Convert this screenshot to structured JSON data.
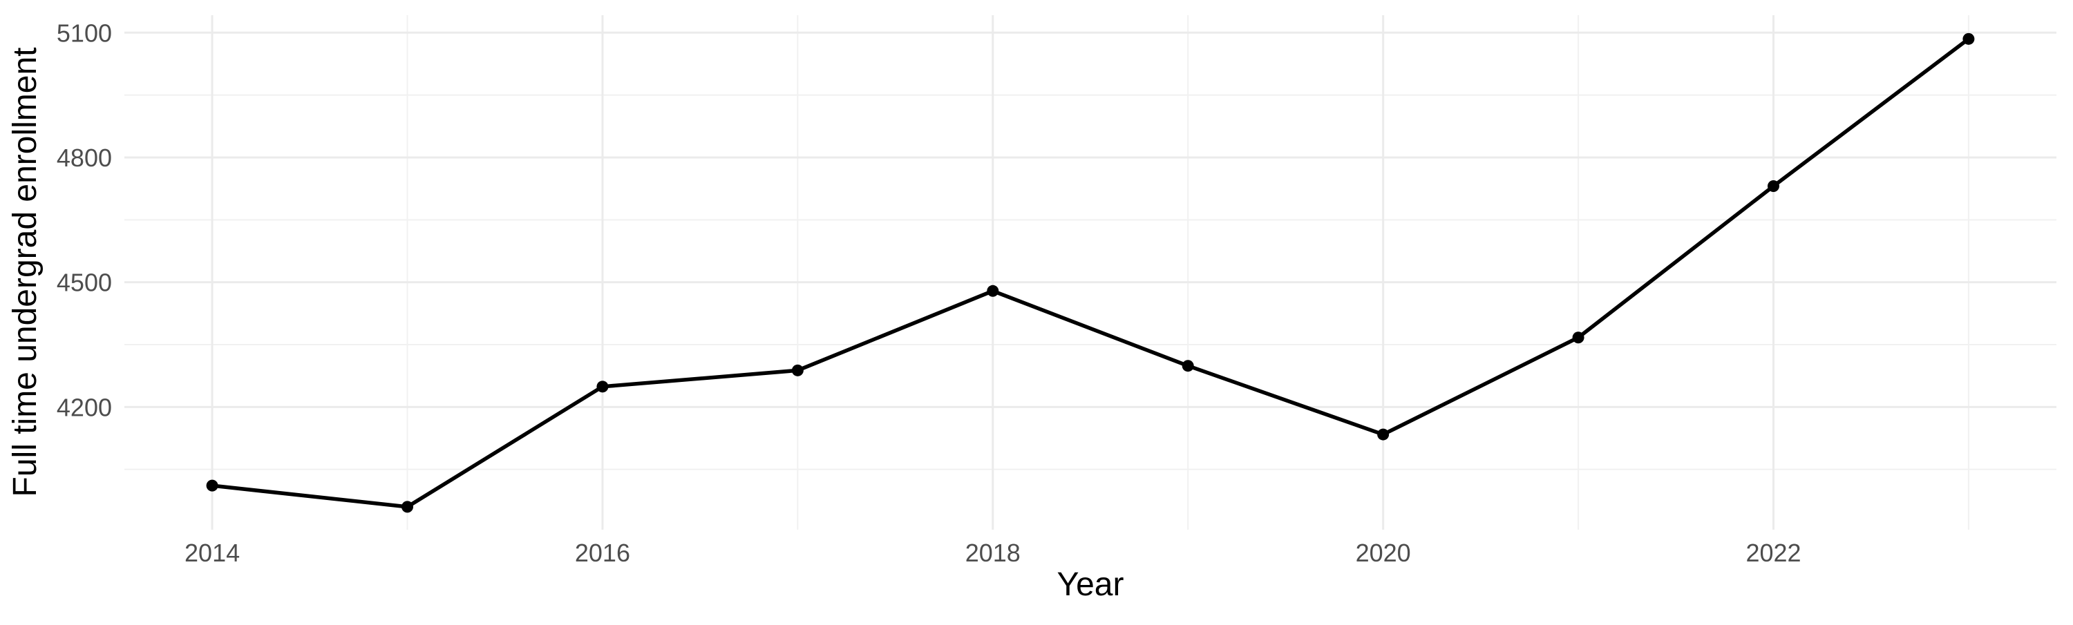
{
  "chart_data": {
    "type": "line",
    "title": "",
    "xlabel": "Year",
    "ylabel": "Full time undergrad enrollment",
    "x": [
      2014,
      2015,
      2016,
      2017,
      2018,
      2019,
      2020,
      2021,
      2022,
      2023
    ],
    "series": [
      {
        "name": "Full time undergrad enrollment",
        "values": [
          4011,
          3960,
          4249,
          4288,
          4479,
          4299,
          4134,
          4367,
          4731,
          5085
        ]
      }
    ],
    "x_ticks_major": [
      2014,
      2016,
      2018,
      2020,
      2022
    ],
    "x_ticks_minor": [
      2015,
      2017,
      2019,
      2021,
      2023
    ],
    "x_tick_labels": [
      "2014",
      "2016",
      "2018",
      "2020",
      "2022"
    ],
    "y_ticks_major": [
      4200,
      4500,
      4800,
      5100
    ],
    "y_ticks_minor": [
      4050,
      4350,
      4650,
      4950
    ],
    "y_tick_labels": [
      "4200",
      "4500",
      "4800",
      "5100"
    ],
    "xlim": [
      2013.55,
      2023.45
    ],
    "ylim": [
      3905,
      5142
    ],
    "grid": "major and minor, no axis lines, no tick marks",
    "legend": "none",
    "colors": {
      "line": "#000000",
      "point": "#000000",
      "grid_major": "#EBEBEB",
      "grid_minor": "#F1F1F1",
      "tick_text": "#4D4D4D",
      "axis_title": "#000000",
      "background": "#FFFFFF"
    },
    "point_radius": 8.5,
    "line_width": 5.5
  }
}
